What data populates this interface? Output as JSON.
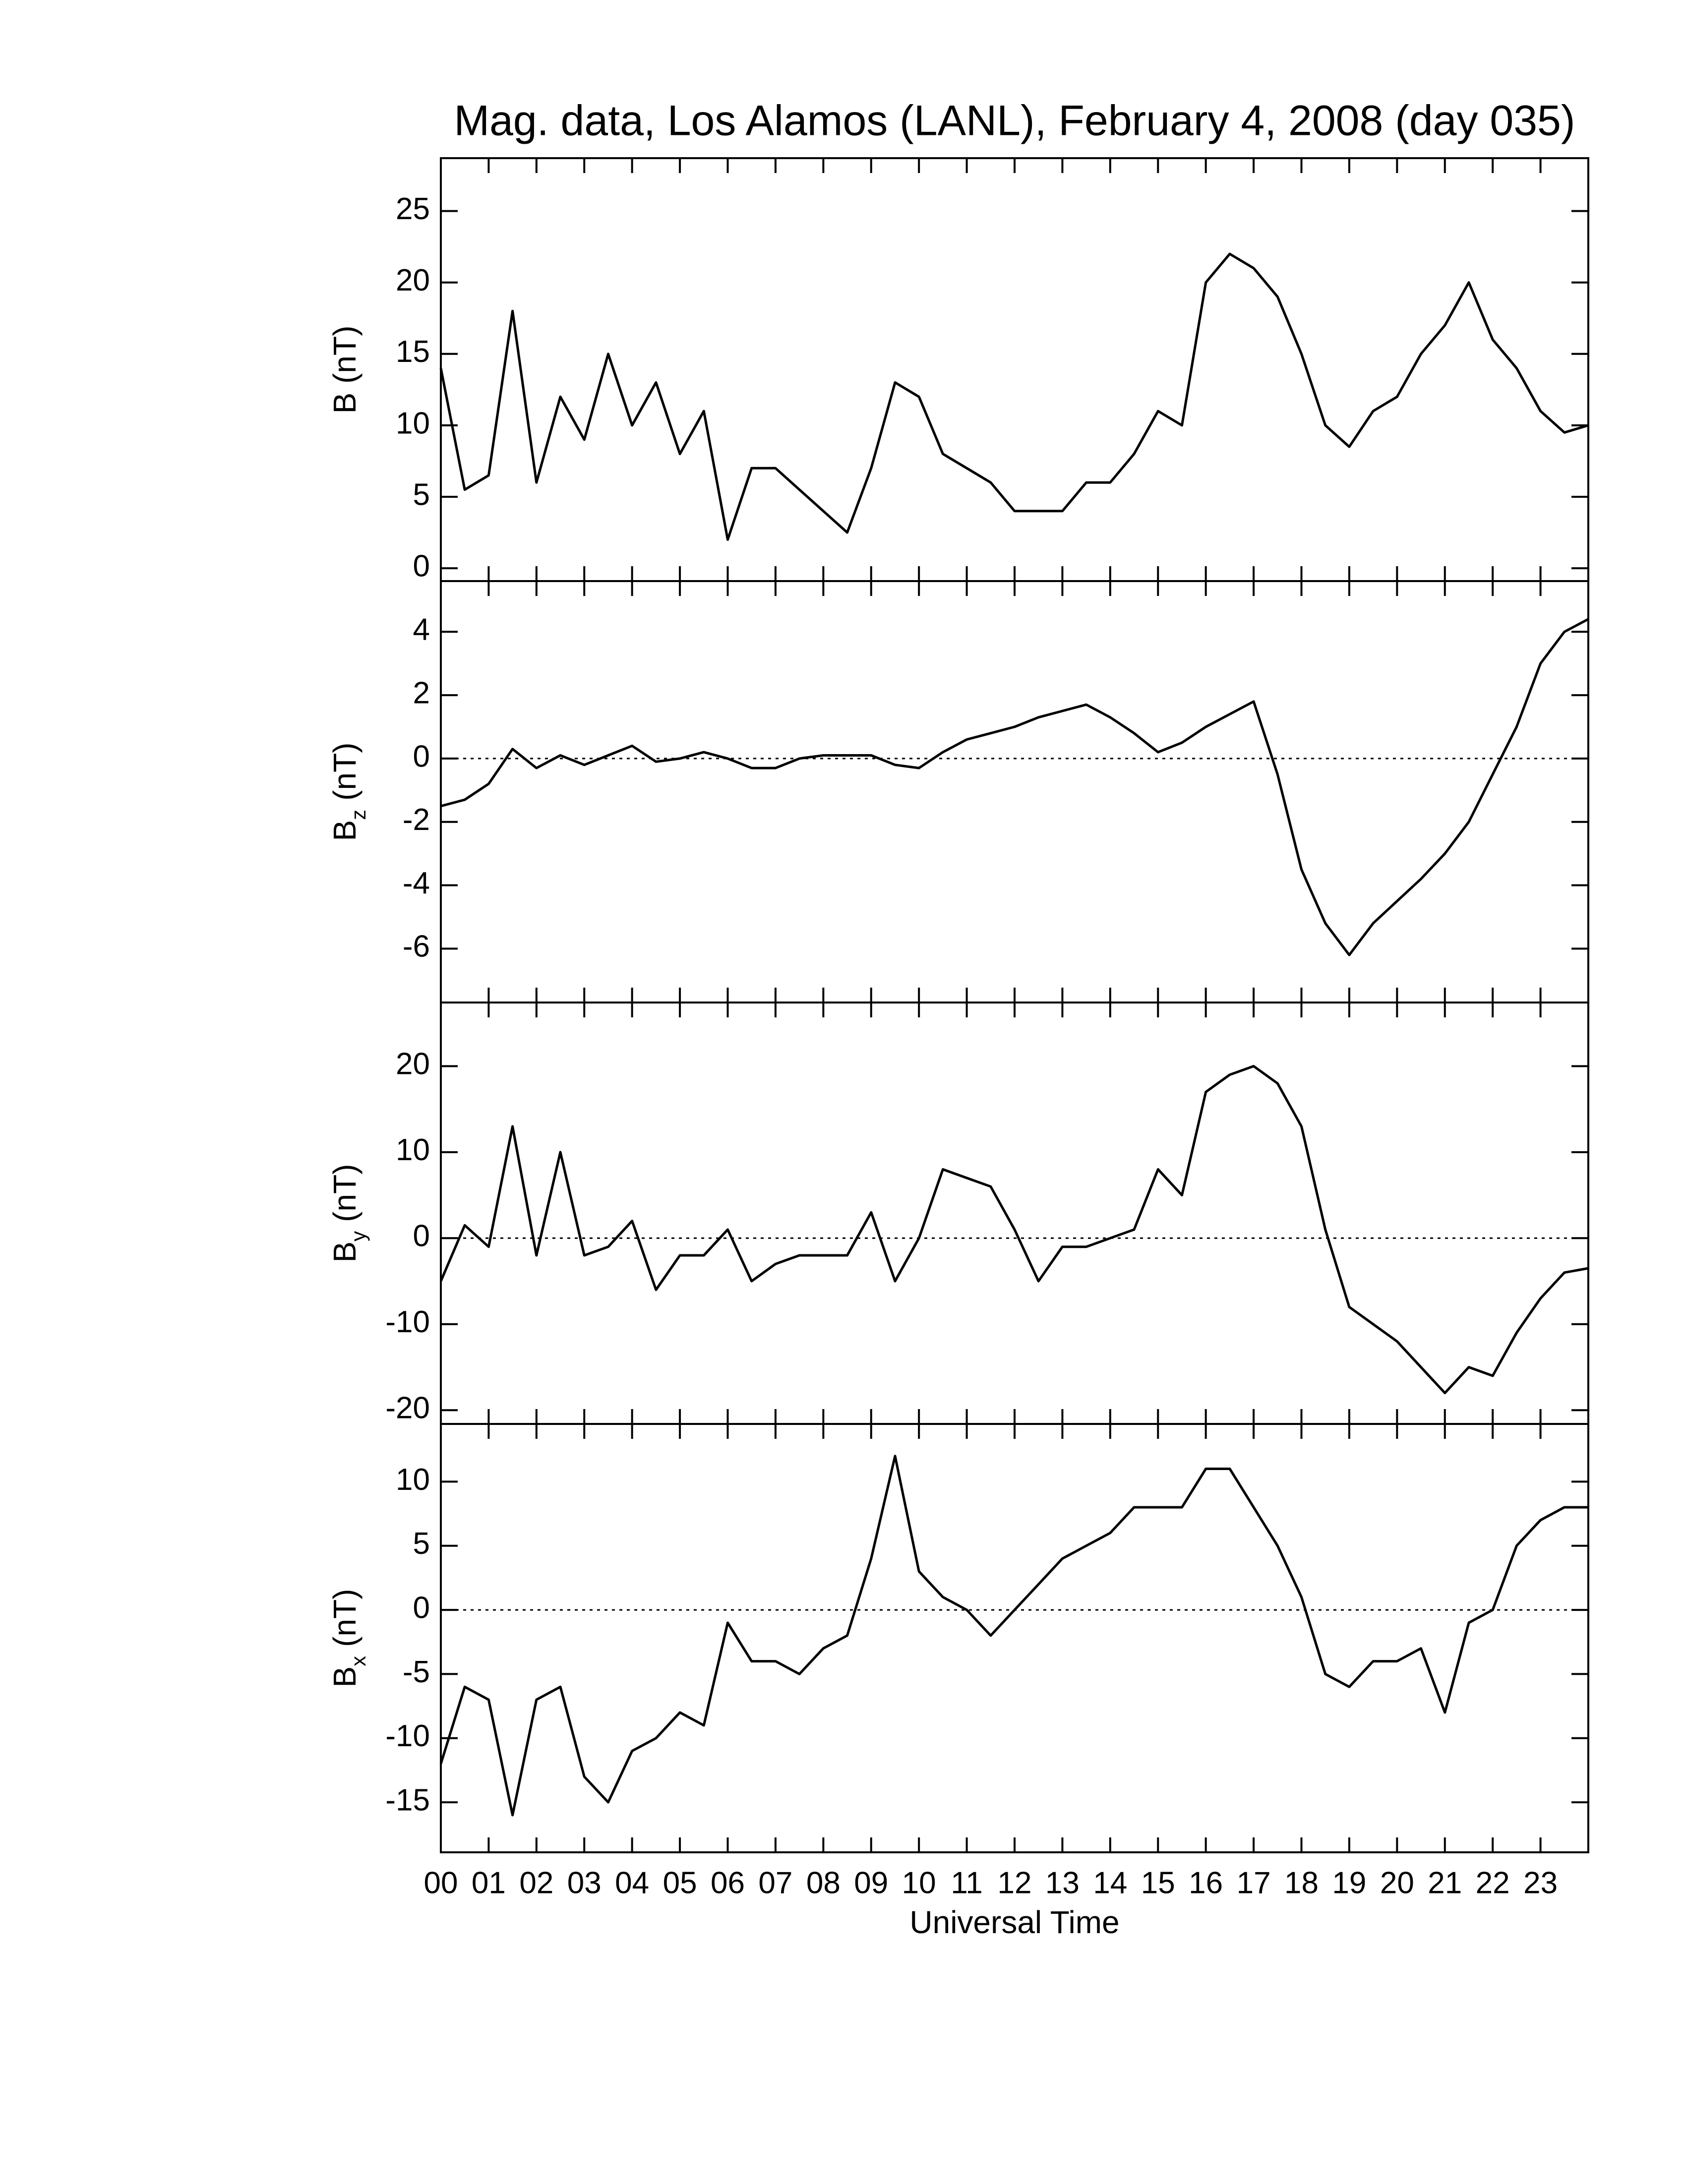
{
  "chart_data": [
    {
      "type": "line",
      "title": "Mag. data, Los Alamos (LANL), February 4, 2008 (day 035)",
      "ylabel": "B (nT)",
      "color": "#000000",
      "xlim": [
        0,
        24
      ],
      "ylim": [
        -0.9,
        28.7
      ],
      "yticks": [
        0,
        5,
        10,
        15,
        20,
        25
      ],
      "x": [
        0,
        0.5,
        1,
        1.5,
        2,
        2.5,
        3,
        3.5,
        4,
        4.5,
        5,
        5.5,
        6,
        6.5,
        7,
        7.5,
        8,
        8.5,
        9,
        9.5,
        10,
        10.5,
        11,
        11.5,
        12,
        12.5,
        13,
        13.5,
        14,
        14.5,
        15,
        15.5,
        16,
        16.5,
        17,
        17.5,
        18,
        18.5,
        19,
        19.5,
        20,
        20.5,
        21,
        21.5,
        22,
        22.5,
        23,
        23.5,
        24
      ],
      "values": [
        14,
        5.5,
        6.5,
        18,
        6,
        12,
        9,
        15,
        10,
        13,
        8,
        11,
        2,
        7,
        7,
        5.5,
        4,
        2.5,
        7,
        13,
        12,
        8,
        7,
        6,
        4,
        4,
        4,
        6,
        6,
        8,
        11,
        10,
        20,
        22,
        21,
        19,
        15,
        10,
        8.5,
        11,
        12,
        15,
        17,
        20,
        16,
        14,
        11,
        9.5,
        10
      ]
    },
    {
      "type": "line",
      "ylabel": "B",
      "ylabel_sub": "z",
      "ylabel_unit": "(nT)",
      "color": "#000000",
      "reference_line": 0,
      "xlim": [
        0,
        24
      ],
      "ylim": [
        -7.7,
        5.6
      ],
      "yticks": [
        -6,
        -4,
        -2,
        0,
        2,
        4
      ],
      "x": [
        0,
        0.5,
        1,
        1.5,
        2,
        2.5,
        3,
        3.5,
        4,
        4.5,
        5,
        5.5,
        6,
        6.5,
        7,
        7.5,
        8,
        8.5,
        9,
        9.5,
        10,
        10.5,
        11,
        11.5,
        12,
        12.5,
        13,
        13.5,
        14,
        14.5,
        15,
        15.5,
        16,
        16.5,
        17,
        17.5,
        18,
        18.5,
        19,
        19.5,
        20,
        20.5,
        21,
        21.5,
        22,
        22.5,
        23,
        23.5,
        24
      ],
      "values": [
        -1.5,
        -1.3,
        -0.8,
        0.3,
        -0.3,
        0.1,
        -0.2,
        0.1,
        0.4,
        -0.1,
        0.0,
        0.2,
        0.0,
        -0.3,
        -0.3,
        0.0,
        0.1,
        0.1,
        0.1,
        -0.2,
        -0.3,
        0.2,
        0.6,
        0.8,
        1.0,
        1.3,
        1.5,
        1.7,
        1.3,
        0.8,
        0.2,
        0.5,
        1.0,
        1.4,
        1.8,
        -0.5,
        -3.5,
        -5.2,
        -6.2,
        -5.2,
        -4.5,
        -3.8,
        -3.0,
        -2.0,
        -0.5,
        1.0,
        3.0,
        4.0,
        4.4
      ]
    },
    {
      "type": "line",
      "ylabel": "B",
      "ylabel_sub": "y",
      "ylabel_unit": "(nT)",
      "color": "#000000",
      "reference_line": 0,
      "xlim": [
        0,
        24
      ],
      "ylim": [
        -21.6,
        27.4
      ],
      "yticks": [
        -20,
        -10,
        0,
        10,
        20
      ],
      "x": [
        0,
        0.5,
        1,
        1.5,
        2,
        2.5,
        3,
        3.5,
        4,
        4.5,
        5,
        5.5,
        6,
        6.5,
        7,
        7.5,
        8,
        8.5,
        9,
        9.5,
        10,
        10.5,
        11,
        11.5,
        12,
        12.5,
        13,
        13.5,
        14,
        14.5,
        15,
        15.5,
        16,
        16.5,
        17,
        17.5,
        18,
        18.5,
        19,
        19.5,
        20,
        20.5,
        21,
        21.5,
        22,
        22.5,
        23,
        23.5,
        24
      ],
      "values": [
        -5,
        1.5,
        -1,
        13,
        -2,
        10,
        -2,
        -1,
        2,
        -6,
        -2,
        -2,
        1,
        -5,
        -3,
        -2,
        -2,
        -2,
        3,
        -5,
        0,
        8,
        7,
        6,
        1,
        -5,
        -1,
        -1,
        0,
        1,
        8,
        5,
        17,
        19,
        20,
        18,
        13,
        1,
        -8,
        -10,
        -12,
        -15,
        -18,
        -15,
        -16,
        -11,
        -7,
        -4,
        -3.5
      ]
    },
    {
      "type": "line",
      "ylabel": "B",
      "ylabel_sub": "x",
      "ylabel_unit": "(nT)",
      "color": "#000000",
      "reference_line": 0,
      "xlabel": "Universal Time",
      "xlim": [
        0,
        24
      ],
      "ylim": [
        -18.9,
        14.5
      ],
      "yticks": [
        -15,
        -10,
        -5,
        0,
        5,
        10
      ],
      "xticks": [
        {
          "value": 0,
          "label": "00"
        },
        {
          "value": 1,
          "label": "01"
        },
        {
          "value": 2,
          "label": "02"
        },
        {
          "value": 3,
          "label": "03"
        },
        {
          "value": 4,
          "label": "04"
        },
        {
          "value": 5,
          "label": "05"
        },
        {
          "value": 6,
          "label": "06"
        },
        {
          "value": 7,
          "label": "07"
        },
        {
          "value": 8,
          "label": "08"
        },
        {
          "value": 9,
          "label": "09"
        },
        {
          "value": 10,
          "label": "10"
        },
        {
          "value": 11,
          "label": "11"
        },
        {
          "value": 12,
          "label": "12"
        },
        {
          "value": 13,
          "label": "13"
        },
        {
          "value": 14,
          "label": "14"
        },
        {
          "value": 15,
          "label": "15"
        },
        {
          "value": 16,
          "label": "16"
        },
        {
          "value": 17,
          "label": "17"
        },
        {
          "value": 18,
          "label": "18"
        },
        {
          "value": 19,
          "label": "19"
        },
        {
          "value": 20,
          "label": "20"
        },
        {
          "value": 21,
          "label": "21"
        },
        {
          "value": 22,
          "label": "22"
        },
        {
          "value": 23,
          "label": "23"
        }
      ],
      "x": [
        0,
        0.5,
        1,
        1.5,
        2,
        2.5,
        3,
        3.5,
        4,
        4.5,
        5,
        5.5,
        6,
        6.5,
        7,
        7.5,
        8,
        8.5,
        9,
        9.5,
        10,
        10.5,
        11,
        11.5,
        12,
        12.5,
        13,
        13.5,
        14,
        14.5,
        15,
        15.5,
        16,
        16.5,
        17,
        17.5,
        18,
        18.5,
        19,
        19.5,
        20,
        20.5,
        21,
        21.5,
        22,
        22.5,
        23,
        23.5,
        24
      ],
      "values": [
        -12,
        -6,
        -7,
        -16,
        -7,
        -6,
        -13,
        -15,
        -11,
        -10,
        -8,
        -9,
        -1,
        -4,
        -4,
        -5,
        -3,
        -2,
        4,
        12,
        3,
        1,
        0,
        -2,
        0,
        2,
        4,
        5,
        6,
        8,
        8,
        8,
        11,
        11,
        8,
        5,
        1,
        -5,
        -6,
        -4,
        -4,
        -3,
        -8,
        -1,
        0,
        5,
        7,
        8,
        8
      ]
    }
  ]
}
